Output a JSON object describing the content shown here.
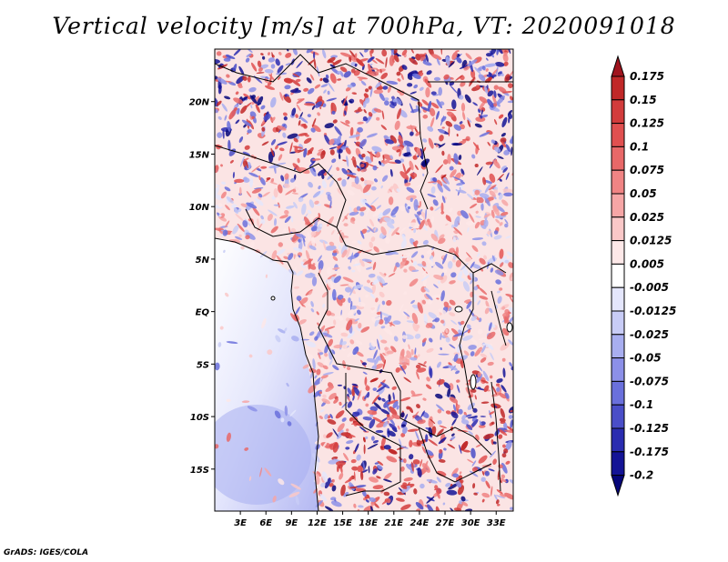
{
  "title": "Vertical velocity [m/s] at 700hPa, VT: 2020091018",
  "credit": "GrADS: IGES/COLA",
  "map": {
    "lat_range": [
      -19,
      25
    ],
    "lon_range": [
      0,
      35
    ],
    "lat_ticks": [
      {
        "value": 20,
        "label": "20N"
      },
      {
        "value": 15,
        "label": "15N"
      },
      {
        "value": 10,
        "label": "10N"
      },
      {
        "value": 5,
        "label": "5N"
      },
      {
        "value": 0,
        "label": "EQ"
      },
      {
        "value": -5,
        "label": "5S"
      },
      {
        "value": -10,
        "label": "10S"
      },
      {
        "value": -15,
        "label": "15S"
      }
    ],
    "lon_ticks": [
      {
        "value": 3,
        "label": "3E"
      },
      {
        "value": 6,
        "label": "6E"
      },
      {
        "value": 9,
        "label": "9E"
      },
      {
        "value": 12,
        "label": "12E"
      },
      {
        "value": 15,
        "label": "15E"
      },
      {
        "value": 18,
        "label": "18E"
      },
      {
        "value": 21,
        "label": "21E"
      },
      {
        "value": 24,
        "label": "24E"
      },
      {
        "value": 27,
        "label": "27E"
      },
      {
        "value": 30,
        "label": "30E"
      },
      {
        "value": 33,
        "label": "33E"
      }
    ]
  },
  "colorbar": {
    "levels": [
      "0.175",
      "0.15",
      "0.125",
      "0.1",
      "0.075",
      "0.05",
      "0.025",
      "0.0125",
      "0.005",
      "-0.005",
      "-0.0125",
      "-0.025",
      "-0.05",
      "-0.075",
      "-0.1",
      "-0.125",
      "-0.175",
      "-0.2"
    ],
    "colors": [
      "#a0141e",
      "#c02828",
      "#d23c3c",
      "#e05050",
      "#e86868",
      "#f08484",
      "#f6a6a6",
      "#fac8c8",
      "#fde8e8",
      "#ffffff",
      "#e4e6fc",
      "#c8ccf6",
      "#a8aef0",
      "#8c90e8",
      "#6a70dc",
      "#4a4ec8",
      "#2a2cb0",
      "#141496",
      "#06067a"
    ]
  }
}
